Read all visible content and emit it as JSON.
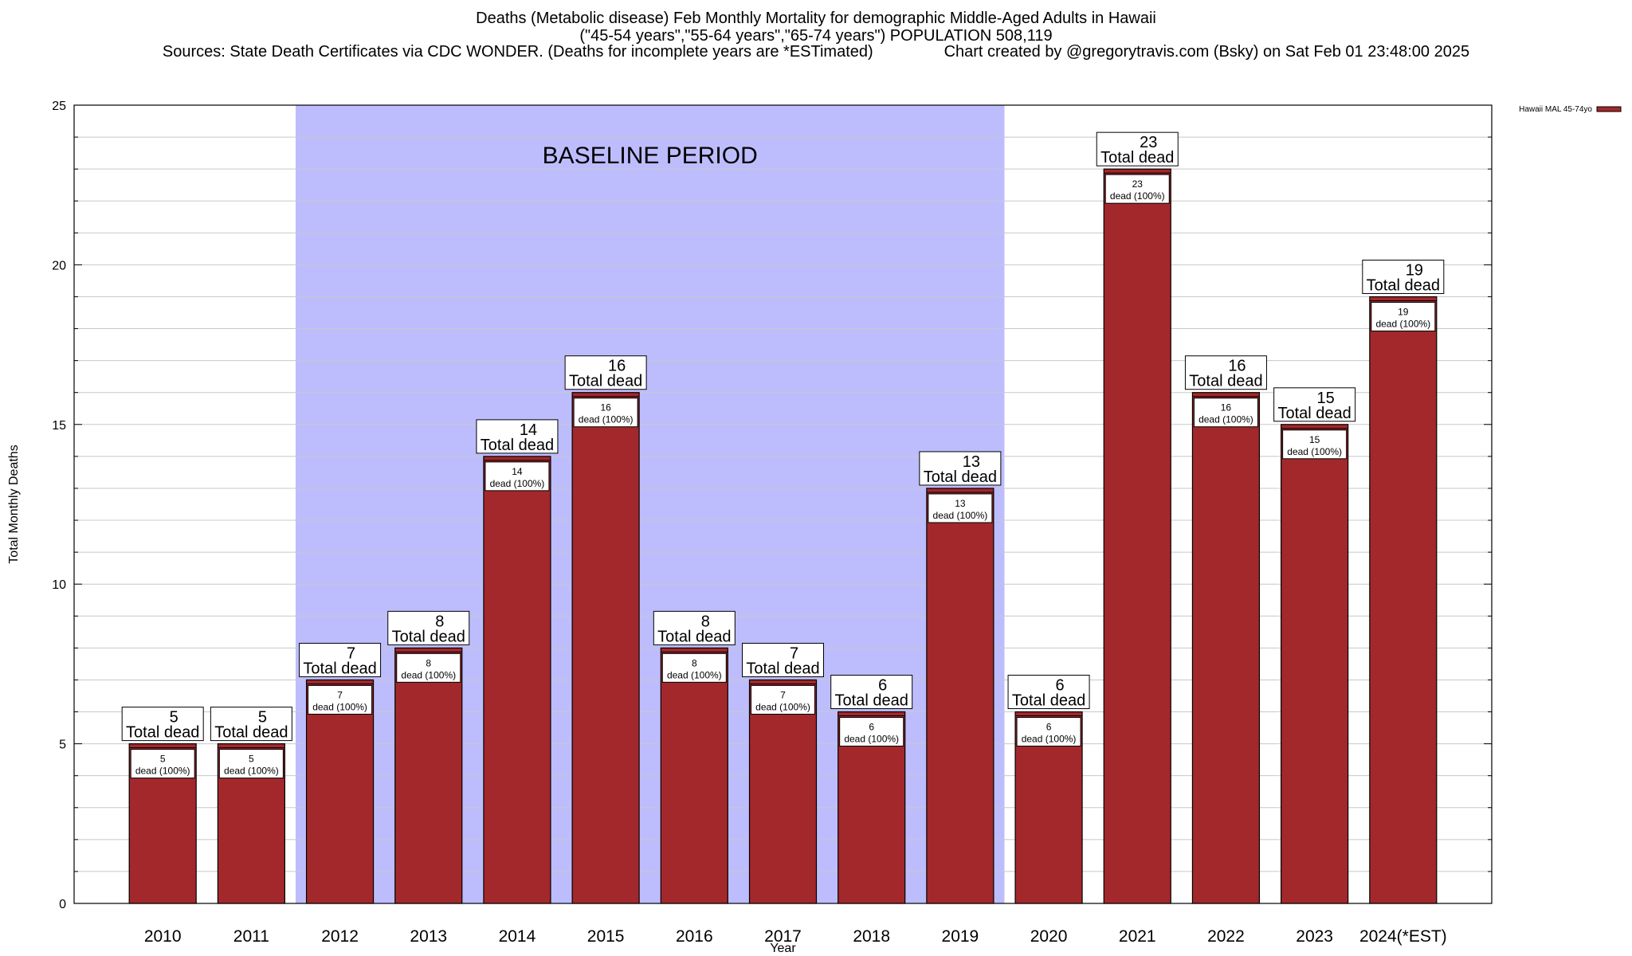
{
  "header": {
    "title_line1": "Deaths (Metabolic disease) Feb Monthly Mortality for demographic Middle-Aged Adults in Hawaii",
    "title_line2": "(\"45-54 years\",\"55-64 years\",\"65-74 years\") POPULATION 508,119",
    "title_line3": "Sources: State Death Certificates via CDC WONDER. (Deaths for incomplete years are *ESTimated)                Chart created by @gregorytravis.com (Bsky) on Sat Feb 01 23:48:00 2025"
  },
  "chart_data": {
    "type": "bar",
    "xlabel": "Year",
    "ylabel": "Total Monthly Deaths",
    "ylim": [
      0,
      25
    ],
    "y_ticks": [
      0,
      5,
      10,
      15,
      20,
      25
    ],
    "grid": true,
    "legend": {
      "position": "top-right",
      "entries": [
        "Hawaii MAL 45-74yo"
      ]
    },
    "categories": [
      "2010",
      "2011",
      "2012",
      "2013",
      "2014",
      "2015",
      "2016",
      "2017",
      "2018",
      "2019",
      "2020",
      "2021",
      "2022",
      "2023",
      "2024(*EST)"
    ],
    "series": [
      {
        "name": "Hawaii MAL 45-74yo",
        "values": [
          5,
          5,
          7,
          8,
          14,
          16,
          8,
          7,
          6,
          13,
          6,
          23,
          16,
          15,
          19
        ]
      }
    ],
    "total_label_text": "Total dead",
    "inner_label_text": "dead (100%)",
    "baseline_period": {
      "label": "BASELINE PERIOD",
      "start": "2012",
      "end": "2019"
    },
    "colors": {
      "bar": "#a3282b",
      "baseline": "#bdbdfd",
      "grid": "#c8c8c8"
    }
  }
}
